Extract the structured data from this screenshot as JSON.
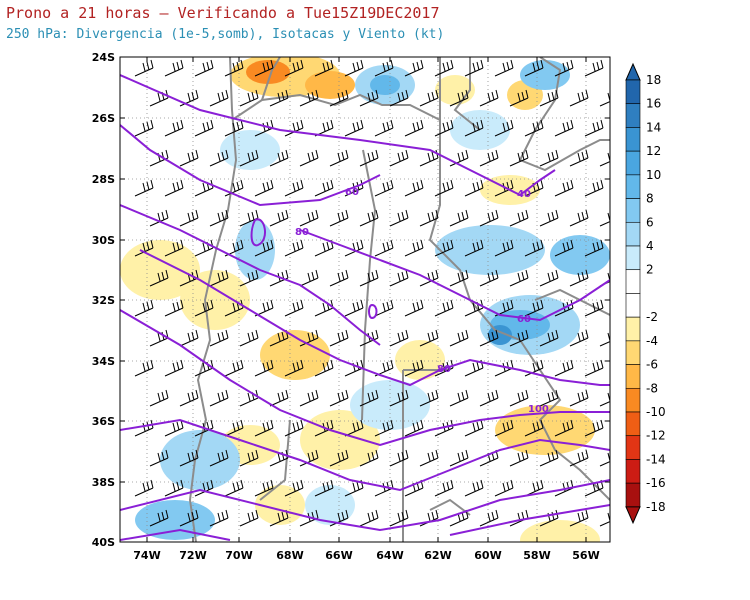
{
  "header": {
    "title": "Prono a 21 horas – Verificando a Tue15Z19DEC2017",
    "subtitle": "250 hPa: Divergencia (1e-5,somb), Isotacas y Viento (kt)"
  },
  "map": {
    "lat_labels": [
      "24S",
      "26S",
      "28S",
      "30S",
      "32S",
      "34S",
      "36S",
      "38S",
      "40S"
    ],
    "lon_labels": [
      "74W",
      "72W",
      "70W",
      "68W",
      "66W",
      "64W",
      "62W",
      "60W",
      "58W",
      "56W"
    ],
    "isotach_labels": [
      "40",
      "60",
      "80",
      "60",
      "80",
      "100"
    ],
    "colors": {
      "isotach": "#8a1fd6",
      "border": "#8c8c8c",
      "grid": "#8c8c8c"
    }
  },
  "colorbar": {
    "labels": [
      "18",
      "16",
      "14",
      "12",
      "10",
      "8",
      "6",
      "4",
      "2",
      "-2",
      "-4",
      "-6",
      "-8",
      "-10",
      "-12",
      "-14",
      "-16",
      "-18"
    ],
    "colors": [
      "#2166ac",
      "#2f7fc0",
      "#3a94d2",
      "#4aa6e0",
      "#62b8ea",
      "#82c9f1",
      "#a3d8f5",
      "#c9ebfb",
      "#ffffff",
      "#ffffff",
      "#fff1a8",
      "#ffd873",
      "#ffb847",
      "#f98a22",
      "#ef5e15",
      "#e23515",
      "#cc1c14",
      "#a8100f"
    ]
  }
}
